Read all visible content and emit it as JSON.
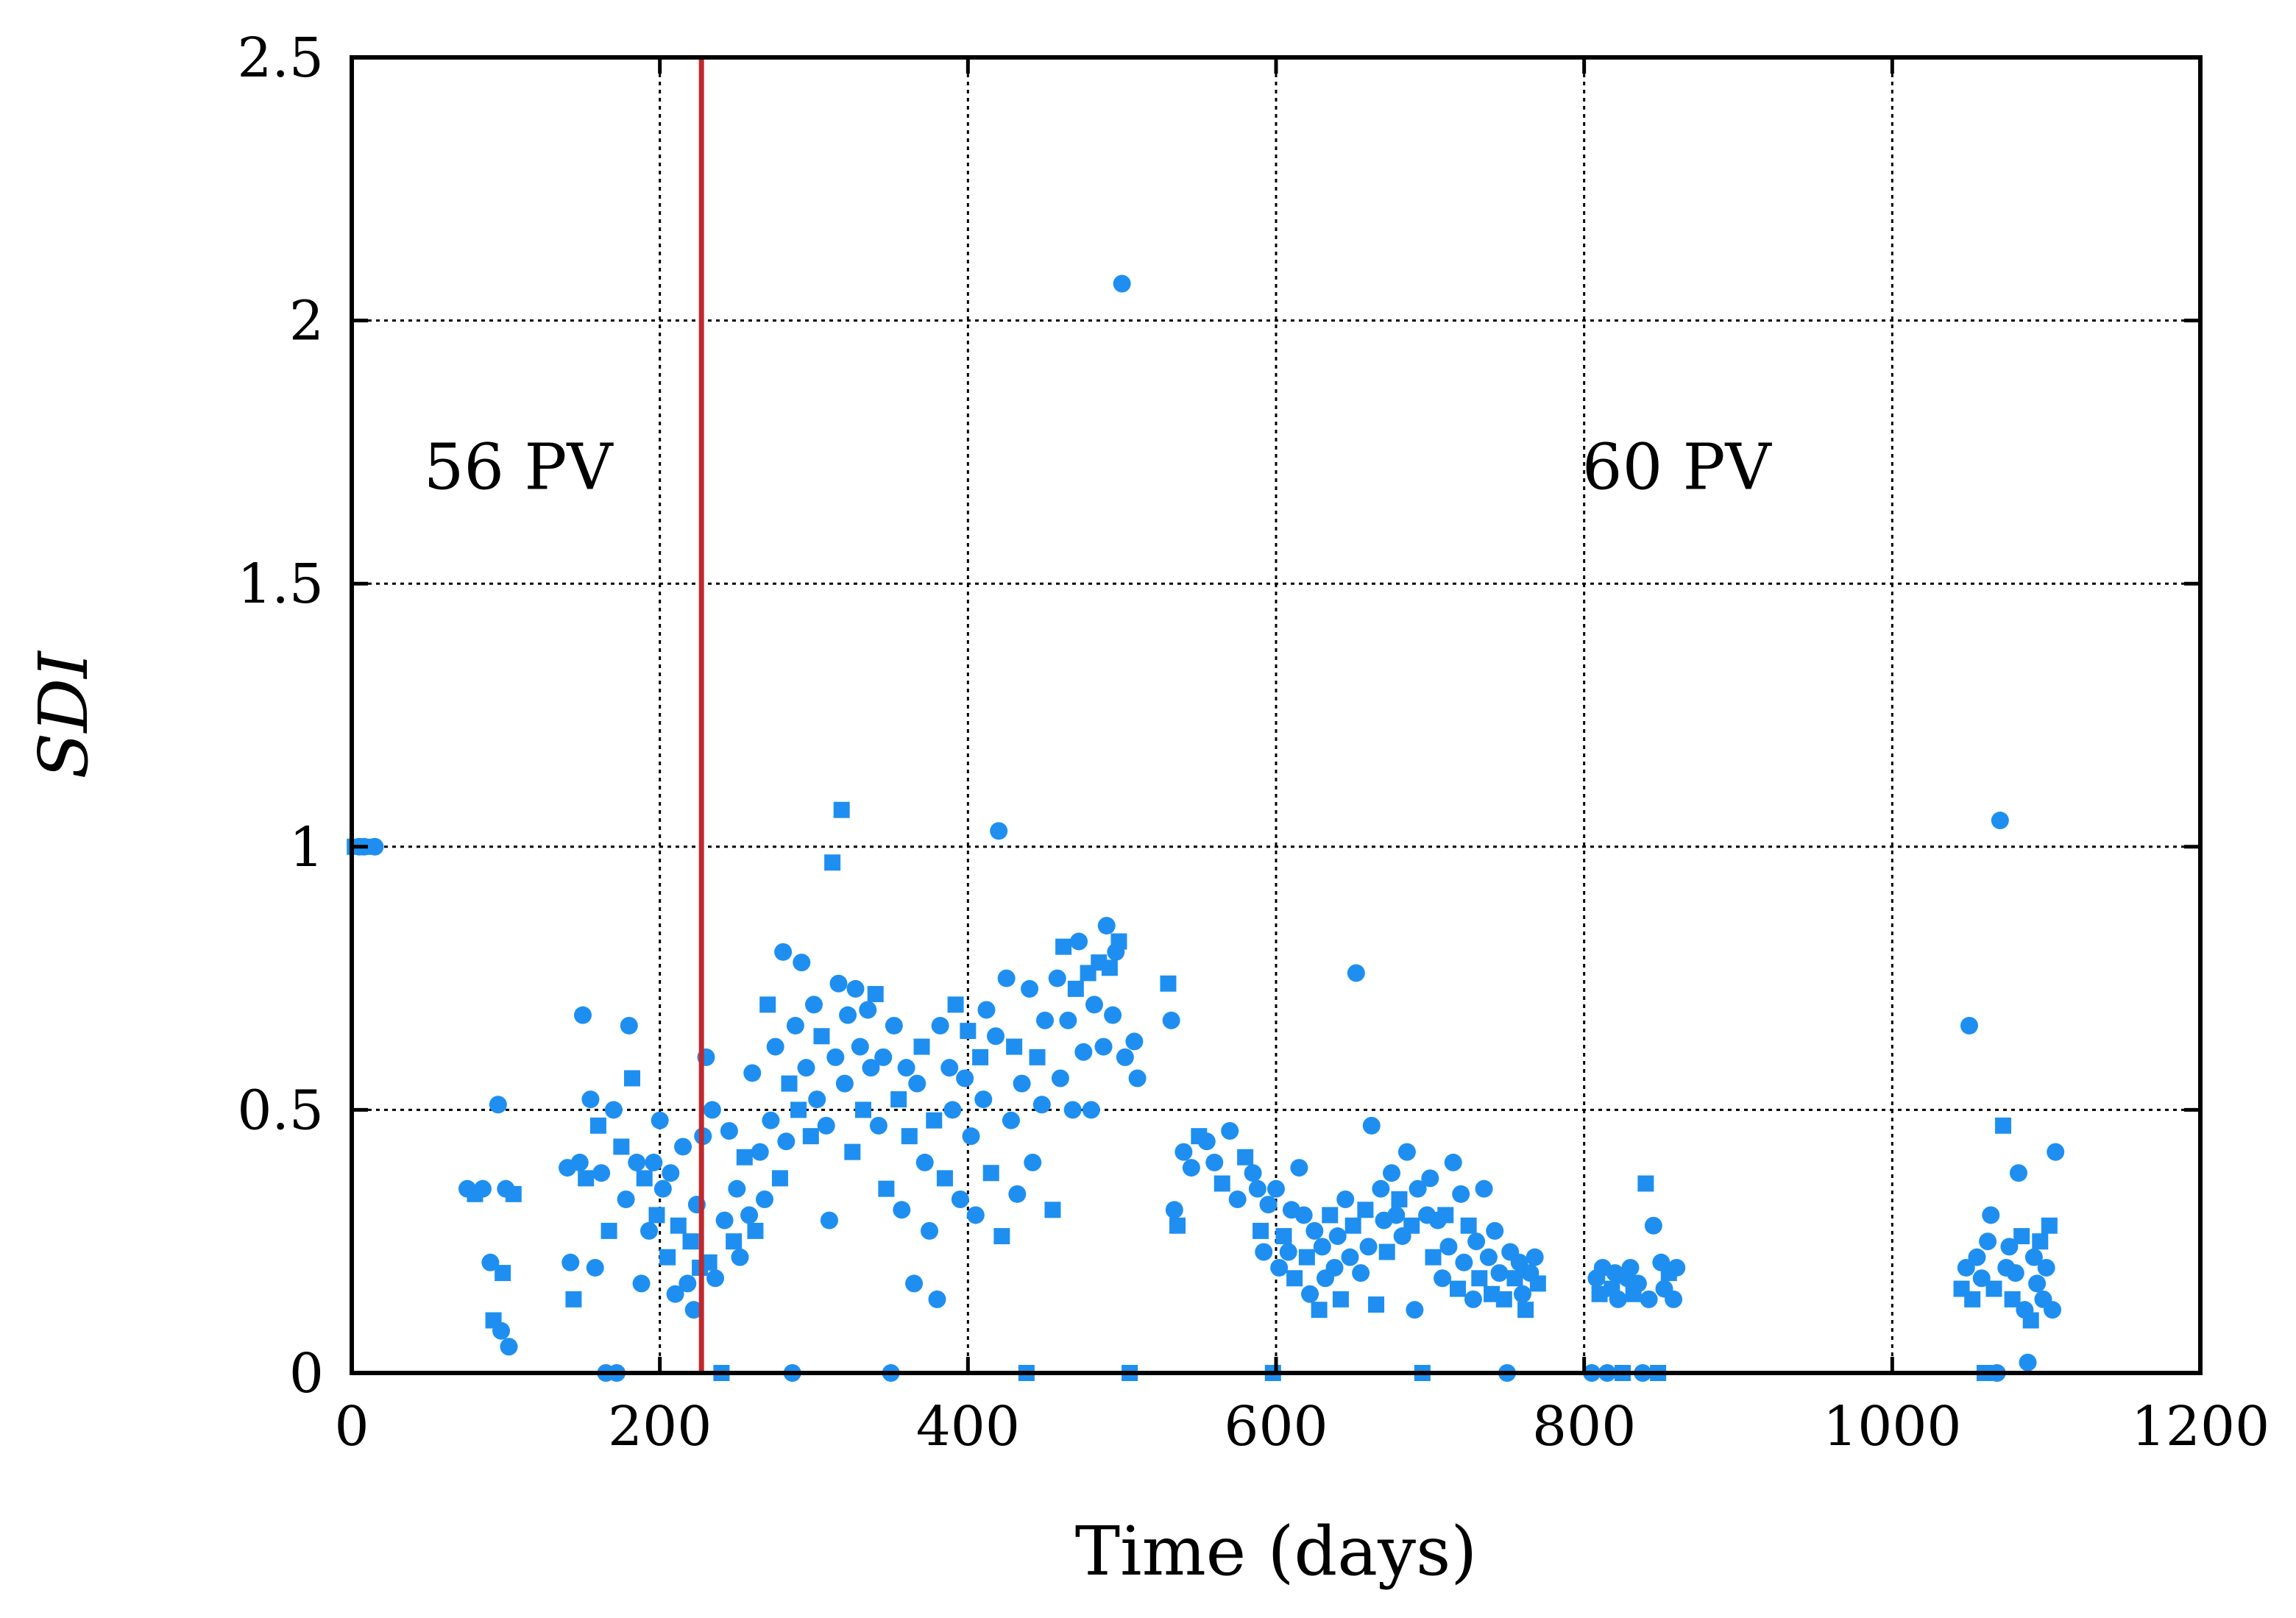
{
  "chart_data": {
    "type": "scatter",
    "title": "",
    "xlabel": "Time (days)",
    "ylabel": "SDI",
    "xlim": [
      0,
      1200
    ],
    "ylim": [
      0,
      2.5
    ],
    "xticks": [
      0,
      200,
      400,
      600,
      800,
      1000,
      1200
    ],
    "yticks": [
      0,
      0.5,
      1,
      1.5,
      2,
      2.5
    ],
    "xtick_labels": [
      "0",
      "200",
      "400",
      "600",
      "800",
      "1000",
      "1200"
    ],
    "ytick_labels": [
      "0",
      "0.5",
      "1",
      "1.5",
      "2",
      "2.5"
    ],
    "grid": true,
    "point_color": "#1e8ff0",
    "reference_line": {
      "x": 227,
      "color": "#c0282d"
    },
    "annotations": [
      {
        "text": "56 PV",
        "x": 108,
        "y": 1.68
      },
      {
        "text": "60 PV",
        "x": 860,
        "y": 1.68
      }
    ],
    "series": [
      {
        "name": "SDI",
        "points": [
          [
            2,
            1.0
          ],
          [
            5,
            1.0
          ],
          [
            8,
            1.0
          ],
          [
            12,
            1.0
          ],
          [
            15,
            1.0
          ],
          [
            75,
            0.35
          ],
          [
            80,
            0.34
          ],
          [
            85,
            0.35
          ],
          [
            90,
            0.21
          ],
          [
            92,
            0.1
          ],
          [
            95,
            0.51
          ],
          [
            97,
            0.08
          ],
          [
            98,
            0.19
          ],
          [
            100,
            0.35
          ],
          [
            102,
            0.05
          ],
          [
            105,
            0.34
          ],
          [
            140,
            0.39
          ],
          [
            142,
            0.21
          ],
          [
            144,
            0.14
          ],
          [
            148,
            0.4
          ],
          [
            150,
            0.68
          ],
          [
            152,
            0.37
          ],
          [
            155,
            0.52
          ],
          [
            158,
            0.2
          ],
          [
            160,
            0.47
          ],
          [
            162,
            0.38
          ],
          [
            165,
            0.0
          ],
          [
            167,
            0.27
          ],
          [
            170,
            0.5
          ],
          [
            172,
            0.0
          ],
          [
            175,
            0.43
          ],
          [
            178,
            0.33
          ],
          [
            180,
            0.66
          ],
          [
            182,
            0.56
          ],
          [
            185,
            0.4
          ],
          [
            188,
            0.17
          ],
          [
            190,
            0.37
          ],
          [
            193,
            0.27
          ],
          [
            196,
            0.4
          ],
          [
            198,
            0.3
          ],
          [
            200,
            0.48
          ],
          [
            202,
            0.35
          ],
          [
            205,
            0.22
          ],
          [
            207,
            0.38
          ],
          [
            210,
            0.15
          ],
          [
            212,
            0.28
          ],
          [
            215,
            0.43
          ],
          [
            218,
            0.17
          ],
          [
            220,
            0.25
          ],
          [
            222,
            0.12
          ],
          [
            224,
            0.32
          ],
          [
            226,
            0.2
          ],
          [
            228,
            0.45
          ],
          [
            230,
            0.6
          ],
          [
            232,
            0.21
          ],
          [
            234,
            0.5
          ],
          [
            236,
            0.18
          ],
          [
            240,
            0.0
          ],
          [
            242,
            0.29
          ],
          [
            245,
            0.46
          ],
          [
            248,
            0.25
          ],
          [
            250,
            0.35
          ],
          [
            252,
            0.22
          ],
          [
            255,
            0.41
          ],
          [
            258,
            0.3
          ],
          [
            260,
            0.57
          ],
          [
            262,
            0.27
          ],
          [
            265,
            0.42
          ],
          [
            268,
            0.33
          ],
          [
            270,
            0.7
          ],
          [
            272,
            0.48
          ],
          [
            275,
            0.62
          ],
          [
            278,
            0.37
          ],
          [
            280,
            0.8
          ],
          [
            282,
            0.44
          ],
          [
            284,
            0.55
          ],
          [
            286,
            0.0
          ],
          [
            288,
            0.66
          ],
          [
            290,
            0.5
          ],
          [
            292,
            0.78
          ],
          [
            295,
            0.58
          ],
          [
            298,
            0.45
          ],
          [
            300,
            0.7
          ],
          [
            302,
            0.52
          ],
          [
            305,
            0.64
          ],
          [
            308,
            0.47
          ],
          [
            310,
            0.29
          ],
          [
            312,
            0.97
          ],
          [
            314,
            0.6
          ],
          [
            316,
            0.74
          ],
          [
            318,
            1.07
          ],
          [
            320,
            0.55
          ],
          [
            322,
            0.68
          ],
          [
            325,
            0.42
          ],
          [
            327,
            0.73
          ],
          [
            330,
            0.62
          ],
          [
            332,
            0.5
          ],
          [
            335,
            0.69
          ],
          [
            337,
            0.58
          ],
          [
            340,
            0.72
          ],
          [
            342,
            0.47
          ],
          [
            345,
            0.6
          ],
          [
            347,
            0.35
          ],
          [
            350,
            0.0
          ],
          [
            352,
            0.66
          ],
          [
            355,
            0.52
          ],
          [
            357,
            0.31
          ],
          [
            360,
            0.58
          ],
          [
            362,
            0.45
          ],
          [
            365,
            0.17
          ],
          [
            367,
            0.55
          ],
          [
            370,
            0.62
          ],
          [
            372,
            0.4
          ],
          [
            375,
            0.27
          ],
          [
            378,
            0.48
          ],
          [
            380,
            0.14
          ],
          [
            382,
            0.66
          ],
          [
            385,
            0.37
          ],
          [
            388,
            0.58
          ],
          [
            390,
            0.5
          ],
          [
            392,
            0.7
          ],
          [
            395,
            0.33
          ],
          [
            398,
            0.56
          ],
          [
            400,
            0.65
          ],
          [
            402,
            0.45
          ],
          [
            405,
            0.3
          ],
          [
            408,
            0.6
          ],
          [
            410,
            0.52
          ],
          [
            412,
            0.69
          ],
          [
            415,
            0.38
          ],
          [
            418,
            0.64
          ],
          [
            420,
            1.03
          ],
          [
            422,
            0.26
          ],
          [
            425,
            0.75
          ],
          [
            428,
            0.48
          ],
          [
            430,
            0.62
          ],
          [
            432,
            0.34
          ],
          [
            435,
            0.55
          ],
          [
            438,
            0.0
          ],
          [
            440,
            0.73
          ],
          [
            442,
            0.4
          ],
          [
            445,
            0.6
          ],
          [
            448,
            0.51
          ],
          [
            450,
            0.67
          ],
          [
            455,
            0.31
          ],
          [
            458,
            0.75
          ],
          [
            460,
            0.56
          ],
          [
            462,
            0.81
          ],
          [
            465,
            0.67
          ],
          [
            468,
            0.5
          ],
          [
            470,
            0.73
          ],
          [
            472,
            0.82
          ],
          [
            475,
            0.61
          ],
          [
            478,
            0.76
          ],
          [
            480,
            0.5
          ],
          [
            482,
            0.7
          ],
          [
            485,
            0.78
          ],
          [
            488,
            0.62
          ],
          [
            490,
            0.85
          ],
          [
            492,
            0.77
          ],
          [
            494,
            0.68
          ],
          [
            496,
            0.8
          ],
          [
            498,
            0.82
          ],
          [
            500,
            2.07
          ],
          [
            502,
            0.6
          ],
          [
            505,
            0.0
          ],
          [
            508,
            0.63
          ],
          [
            510,
            0.56
          ],
          [
            530,
            0.74
          ],
          [
            532,
            0.67
          ],
          [
            534,
            0.31
          ],
          [
            536,
            0.28
          ],
          [
            540,
            0.42
          ],
          [
            545,
            0.39
          ],
          [
            550,
            0.45
          ],
          [
            555,
            0.44
          ],
          [
            560,
            0.4
          ],
          [
            565,
            0.36
          ],
          [
            570,
            0.46
          ],
          [
            575,
            0.33
          ],
          [
            580,
            0.41
          ],
          [
            585,
            0.38
          ],
          [
            588,
            0.35
          ],
          [
            590,
            0.27
          ],
          [
            592,
            0.23
          ],
          [
            595,
            0.32
          ],
          [
            598,
            0.0
          ],
          [
            600,
            0.35
          ],
          [
            602,
            0.2
          ],
          [
            605,
            0.26
          ],
          [
            608,
            0.23
          ],
          [
            610,
            0.31
          ],
          [
            612,
            0.18
          ],
          [
            615,
            0.39
          ],
          [
            618,
            0.3
          ],
          [
            620,
            0.22
          ],
          [
            622,
            0.15
          ],
          [
            625,
            0.27
          ],
          [
            628,
            0.12
          ],
          [
            630,
            0.24
          ],
          [
            632,
            0.18
          ],
          [
            635,
            0.3
          ],
          [
            638,
            0.2
          ],
          [
            640,
            0.26
          ],
          [
            642,
            0.14
          ],
          [
            645,
            0.33
          ],
          [
            648,
            0.22
          ],
          [
            650,
            0.28
          ],
          [
            652,
            0.76
          ],
          [
            655,
            0.19
          ],
          [
            658,
            0.31
          ],
          [
            660,
            0.24
          ],
          [
            662,
            0.47
          ],
          [
            665,
            0.13
          ],
          [
            668,
            0.35
          ],
          [
            670,
            0.29
          ],
          [
            672,
            0.23
          ],
          [
            675,
            0.38
          ],
          [
            678,
            0.3
          ],
          [
            680,
            0.33
          ],
          [
            682,
            0.26
          ],
          [
            685,
            0.42
          ],
          [
            688,
            0.28
          ],
          [
            690,
            0.12
          ],
          [
            692,
            0.35
          ],
          [
            695,
            0.0
          ],
          [
            698,
            0.3
          ],
          [
            700,
            0.37
          ],
          [
            702,
            0.22
          ],
          [
            705,
            0.29
          ],
          [
            708,
            0.18
          ],
          [
            710,
            0.3
          ],
          [
            712,
            0.24
          ],
          [
            715,
            0.4
          ],
          [
            718,
            0.16
          ],
          [
            720,
            0.34
          ],
          [
            722,
            0.21
          ],
          [
            725,
            0.28
          ],
          [
            728,
            0.14
          ],
          [
            730,
            0.25
          ],
          [
            732,
            0.18
          ],
          [
            735,
            0.35
          ],
          [
            738,
            0.22
          ],
          [
            740,
            0.15
          ],
          [
            742,
            0.27
          ],
          [
            745,
            0.19
          ],
          [
            748,
            0.14
          ],
          [
            750,
            0.0
          ],
          [
            752,
            0.23
          ],
          [
            755,
            0.18
          ],
          [
            758,
            0.21
          ],
          [
            760,
            0.15
          ],
          [
            762,
            0.12
          ],
          [
            765,
            0.19
          ],
          [
            768,
            0.22
          ],
          [
            770,
            0.17
          ],
          [
            805,
            0.0
          ],
          [
            808,
            0.18
          ],
          [
            810,
            0.15
          ],
          [
            812,
            0.2
          ],
          [
            815,
            0.0
          ],
          [
            818,
            0.16
          ],
          [
            820,
            0.19
          ],
          [
            822,
            0.14
          ],
          [
            825,
            0.0
          ],
          [
            828,
            0.18
          ],
          [
            830,
            0.2
          ],
          [
            832,
            0.15
          ],
          [
            835,
            0.17
          ],
          [
            838,
            0.0
          ],
          [
            840,
            0.36
          ],
          [
            842,
            0.14
          ],
          [
            845,
            0.28
          ],
          [
            848,
            0.0
          ],
          [
            850,
            0.21
          ],
          [
            852,
            0.16
          ],
          [
            855,
            0.19
          ],
          [
            858,
            0.14
          ],
          [
            860,
            0.2
          ],
          [
            1045,
            0.16
          ],
          [
            1048,
            0.2
          ],
          [
            1050,
            0.66
          ],
          [
            1052,
            0.14
          ],
          [
            1055,
            0.22
          ],
          [
            1058,
            0.18
          ],
          [
            1060,
            0.0
          ],
          [
            1062,
            0.25
          ],
          [
            1064,
            0.3
          ],
          [
            1066,
            0.16
          ],
          [
            1068,
            0.0
          ],
          [
            1070,
            1.05
          ],
          [
            1072,
            0.47
          ],
          [
            1074,
            0.2
          ],
          [
            1076,
            0.24
          ],
          [
            1078,
            0.14
          ],
          [
            1080,
            0.19
          ],
          [
            1082,
            0.38
          ],
          [
            1084,
            0.26
          ],
          [
            1086,
            0.12
          ],
          [
            1088,
            0.02
          ],
          [
            1090,
            0.1
          ],
          [
            1092,
            0.22
          ],
          [
            1094,
            0.17
          ],
          [
            1096,
            0.25
          ],
          [
            1098,
            0.14
          ],
          [
            1100,
            0.2
          ],
          [
            1102,
            0.28
          ],
          [
            1104,
            0.12
          ],
          [
            1106,
            0.42
          ]
        ]
      }
    ]
  }
}
